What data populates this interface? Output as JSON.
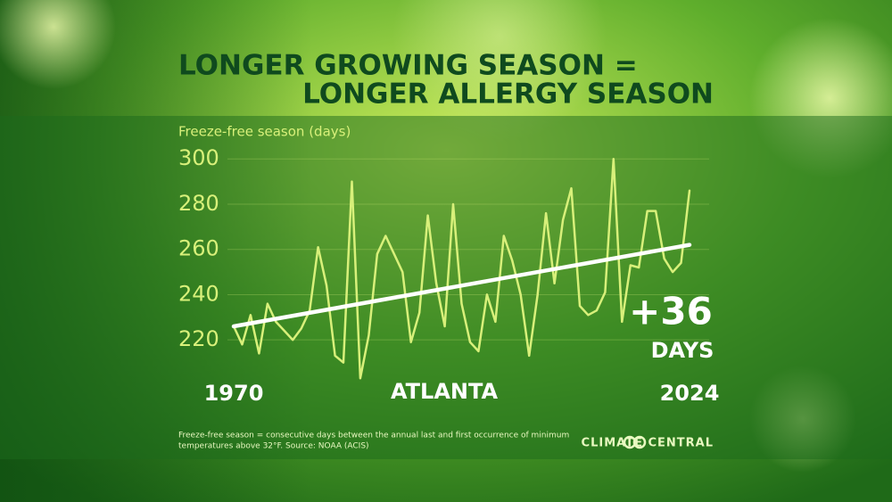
{
  "chart_data": {
    "type": "line",
    "title_line1": "LONGER GROWING SEASON =",
    "title_line2": "LONGER ALLERGY SEASON",
    "y_label": "Freeze-free season (days)",
    "location": "ATLANTA",
    "annotation": "+36",
    "annotation_unit": "DAYS",
    "footnote_line1": "Freeze-free season = consecutive days between the annual last and first occurrence of minimum",
    "footnote_line2": "temperatures above 32°F. Source: NOAA (ACIS)",
    "logo": "CLIMATE CENTRAL",
    "x": [
      1970,
      1971,
      1972,
      1973,
      1974,
      1975,
      1976,
      1977,
      1978,
      1979,
      1980,
      1981,
      1982,
      1983,
      1984,
      1985,
      1986,
      1987,
      1988,
      1989,
      1990,
      1991,
      1992,
      1993,
      1994,
      1995,
      1996,
      1997,
      1998,
      1999,
      2000,
      2001,
      2002,
      2003,
      2004,
      2005,
      2006,
      2007,
      2008,
      2009,
      2010,
      2011,
      2012,
      2013,
      2014,
      2015,
      2016,
      2017,
      2018,
      2019,
      2020,
      2021,
      2022,
      2023,
      2024
    ],
    "series": [
      {
        "name": "Freeze-free season",
        "color": "#d8f07a",
        "values": [
          226,
          218,
          231,
          214,
          236,
          228,
          224,
          220,
          225,
          233,
          261,
          244,
          213,
          210,
          290,
          203,
          222,
          258,
          266,
          258,
          250,
          219,
          232,
          275,
          245,
          226,
          280,
          236,
          219,
          215,
          240,
          228,
          266,
          255,
          240,
          213,
          240,
          276,
          245,
          273,
          287,
          235,
          231,
          233,
          241,
          300,
          228,
          253,
          252,
          277,
          277,
          256,
          250,
          254,
          286
        ]
      },
      {
        "name": "Trend",
        "color": "#ffffff",
        "x": [
          1970,
          2024
        ],
        "values": [
          226,
          262
        ]
      }
    ],
    "xlim": [
      1970,
      2024
    ],
    "xticks": [
      1970,
      2024
    ],
    "ylim": [
      198,
      306
    ],
    "yticks": [
      220,
      240,
      260,
      280,
      300
    ],
    "grid": true
  }
}
